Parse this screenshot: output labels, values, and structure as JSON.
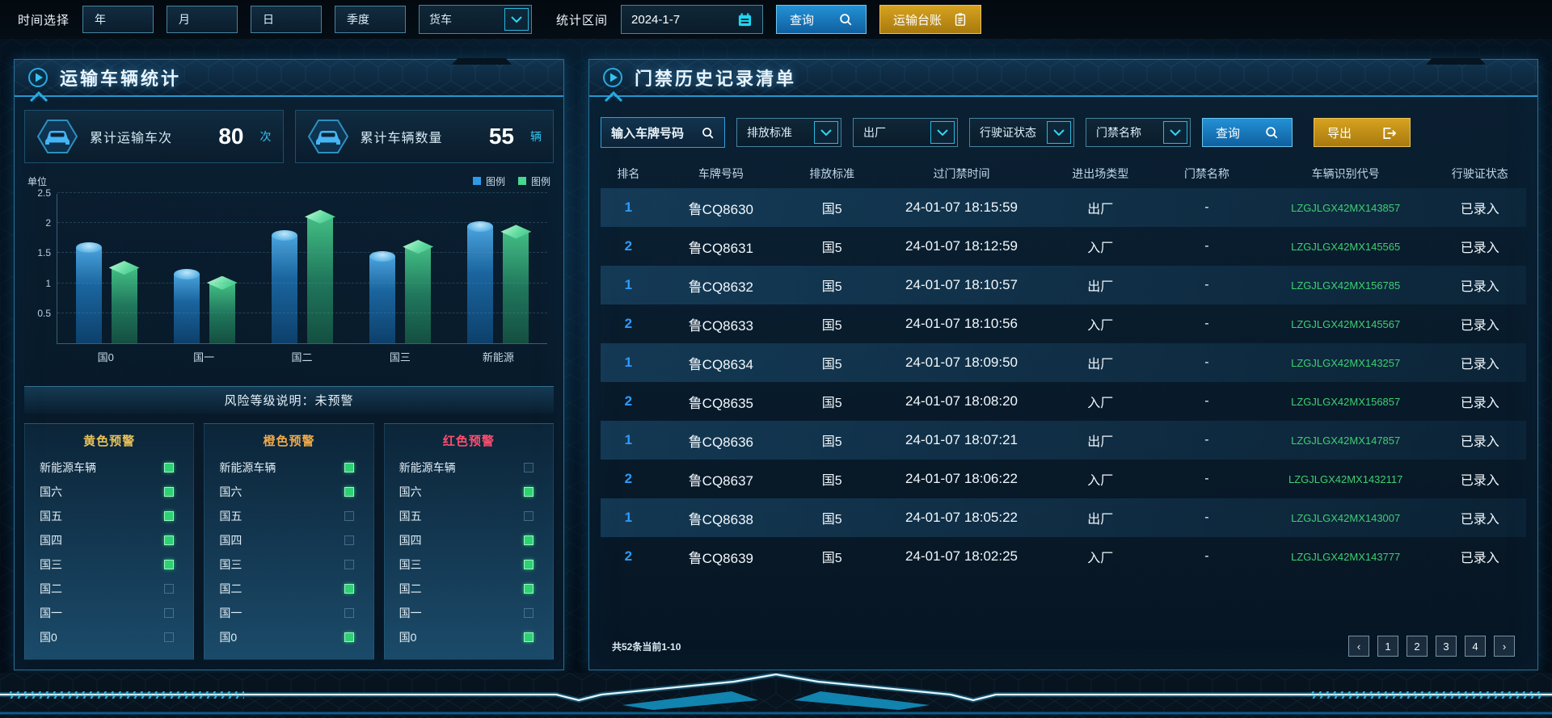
{
  "topbar": {
    "time_label": "时间选择",
    "time_buttons": [
      "年",
      "月",
      "日",
      "季度"
    ],
    "vehicle_select": "货车",
    "range_label": "统计区间",
    "date_value": "2024-1-7",
    "query_label": "查询",
    "ledger_label": "运输台账"
  },
  "left_panel": {
    "title": "运输车辆统计",
    "stats": [
      {
        "label": "累计运输车次",
        "value": "80",
        "unit": "次"
      },
      {
        "label": "累计车辆数量",
        "value": "55",
        "unit": "辆"
      }
    ],
    "risk_note": "风险等级说明：未预警",
    "warnings": [
      {
        "title": "黄色预警",
        "color": "#e6c159",
        "items": [
          {
            "label": "新能源车辆",
            "checked": true
          },
          {
            "label": "国六",
            "checked": true
          },
          {
            "label": "国五",
            "checked": true
          },
          {
            "label": "国四",
            "checked": true
          },
          {
            "label": "国三",
            "checked": true
          },
          {
            "label": "国二",
            "checked": false
          },
          {
            "label": "国一",
            "checked": false
          },
          {
            "label": "国0",
            "checked": false
          }
        ]
      },
      {
        "title": "橙色预警",
        "color": "#efa94a",
        "items": [
          {
            "label": "新能源车辆",
            "checked": true
          },
          {
            "label": "国六",
            "checked": true
          },
          {
            "label": "国五",
            "checked": false
          },
          {
            "label": "国四",
            "checked": false
          },
          {
            "label": "国三",
            "checked": false
          },
          {
            "label": "国二",
            "checked": true
          },
          {
            "label": "国一",
            "checked": false
          },
          {
            "label": "国0",
            "checked": true
          }
        ]
      },
      {
        "title": "红色预警",
        "color": "#ff4d6e",
        "items": [
          {
            "label": "新能源车辆",
            "checked": false
          },
          {
            "label": "国六",
            "checked": true
          },
          {
            "label": "国五",
            "checked": false
          },
          {
            "label": "国四",
            "checked": true
          },
          {
            "label": "国三",
            "checked": true
          },
          {
            "label": "国二",
            "checked": true
          },
          {
            "label": "国一",
            "checked": false
          },
          {
            "label": "国0",
            "checked": true
          }
        ]
      }
    ]
  },
  "chart_data": {
    "type": "bar",
    "title": "",
    "unit_label": "单位",
    "categories": [
      "国0",
      "国一",
      "国二",
      "国三",
      "新能源"
    ],
    "series": [
      {
        "name": "图例",
        "color": "#2e9ae6",
        "values": [
          1.6,
          1.15,
          1.8,
          1.45,
          1.95
        ]
      },
      {
        "name": "图例",
        "color": "#49d68f",
        "values": [
          1.25,
          1.0,
          2.1,
          1.6,
          1.85
        ]
      }
    ],
    "xlabel": "",
    "ylabel": "单位",
    "ylim": [
      0,
      2.5
    ],
    "yticks": [
      0.5,
      1,
      1.5,
      2,
      2.5
    ],
    "grid": true,
    "legend_position": "top-right"
  },
  "right_panel": {
    "title": "门禁历史记录清单",
    "filters": {
      "plate_placeholder": "输入车牌号码",
      "dropdowns": [
        "排放标准",
        "出厂",
        "行驶证状态",
        "门禁名称"
      ],
      "query_label": "查询",
      "export_label": "导出"
    },
    "table": {
      "headers": [
        "排名",
        "车牌号码",
        "排放标准",
        "过门禁时间",
        "进出场类型",
        "门禁名称",
        "车辆识别代号",
        "行驶证状态"
      ],
      "rows": [
        {
          "rank": "1",
          "plate": "鲁CQ8630",
          "standard": "国5",
          "time": "24-01-07 18:15:59",
          "type": "出厂",
          "gate": "-",
          "vin": "LZGJLGX42MX143857",
          "license": "已录入"
        },
        {
          "rank": "2",
          "plate": "鲁CQ8631",
          "standard": "国5",
          "time": "24-01-07 18:12:59",
          "type": "入厂",
          "gate": "-",
          "vin": "LZGJLGX42MX145565",
          "license": "已录入"
        },
        {
          "rank": "1",
          "plate": "鲁CQ8632",
          "standard": "国5",
          "time": "24-01-07 18:10:57",
          "type": "出厂",
          "gate": "-",
          "vin": "LZGJLGX42MX156785",
          "license": "已录入"
        },
        {
          "rank": "2",
          "plate": "鲁CQ8633",
          "standard": "国5",
          "time": "24-01-07 18:10:56",
          "type": "入厂",
          "gate": "-",
          "vin": "LZGJLGX42MX145567",
          "license": "已录入"
        },
        {
          "rank": "1",
          "plate": "鲁CQ8634",
          "standard": "国5",
          "time": "24-01-07 18:09:50",
          "type": "出厂",
          "gate": "-",
          "vin": "LZGJLGX42MX143257",
          "license": "已录入"
        },
        {
          "rank": "2",
          "plate": "鲁CQ8635",
          "standard": "国5",
          "time": "24-01-07 18:08:20",
          "type": "入厂",
          "gate": "-",
          "vin": "LZGJLGX42MX156857",
          "license": "已录入"
        },
        {
          "rank": "1",
          "plate": "鲁CQ8636",
          "standard": "国5",
          "time": "24-01-07 18:07:21",
          "type": "出厂",
          "gate": "-",
          "vin": "LZGJLGX42MX147857",
          "license": "已录入"
        },
        {
          "rank": "2",
          "plate": "鲁CQ8637",
          "standard": "国5",
          "time": "24-01-07 18:06:22",
          "type": "入厂",
          "gate": "-",
          "vin": "LZGJLGX42MX1432117",
          "license": "已录入"
        },
        {
          "rank": "1",
          "plate": "鲁CQ8638",
          "standard": "国5",
          "time": "24-01-07 18:05:22",
          "type": "出厂",
          "gate": "-",
          "vin": "LZGJLGX42MX143007",
          "license": "已录入"
        },
        {
          "rank": "2",
          "plate": "鲁CQ8639",
          "standard": "国5",
          "time": "24-01-07 18:02:25",
          "type": "入厂",
          "gate": "-",
          "vin": "LZGJLGX42MX143777",
          "license": "已录入"
        }
      ]
    },
    "pagination": {
      "summary": "共52条当前1-10",
      "prev": "‹",
      "pages": [
        "1",
        "2",
        "3",
        "4"
      ],
      "next": "›"
    }
  },
  "icons": {
    "search": "magnifier",
    "calendar": "calendar",
    "ledger": "clipboard",
    "export": "box-arrow-right",
    "dropdown": "chevron-down",
    "panel_marker": "play-circle",
    "stat": "car-front",
    "accent_color": "#2fd8f0",
    "gold_color": "#d6a21f",
    "green_color": "#2ed173"
  }
}
